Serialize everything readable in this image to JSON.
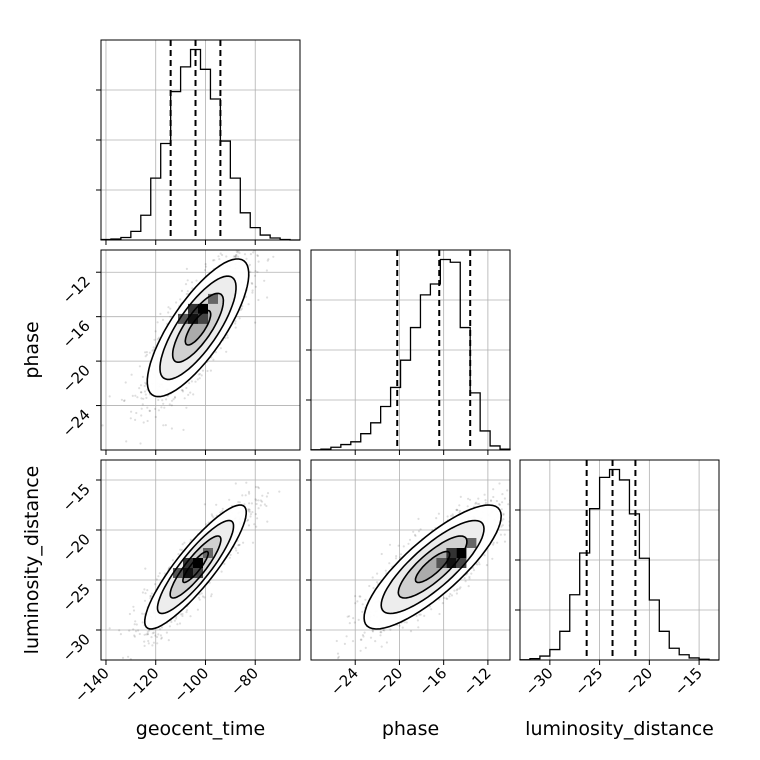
{
  "chart_data": {
    "type": "corner",
    "title": "",
    "parameters": [
      {
        "name": "geocent_time",
        "label": "geocent_time",
        "range": [
          -142,
          -62
        ],
        "ticks": [
          -140,
          -120,
          -100,
          -80
        ],
        "tick_labels": [
          "−140",
          "−120",
          "−100",
          "−80"
        ]
      },
      {
        "name": "phase",
        "label": "phase",
        "range": [
          -28,
          -10
        ],
        "ticks": [
          -24,
          -20,
          -16,
          -12
        ],
        "tick_labels": [
          "−24",
          "−20",
          "−16",
          "−12"
        ]
      },
      {
        "name": "luminosity_distance",
        "label": "luminosity_distance",
        "range": [
          -33,
          -13
        ],
        "ticks": [
          -30,
          -25,
          -20,
          -15
        ],
        "tick_labels": [
          "−30",
          "−25",
          "−20",
          "−15"
        ]
      }
    ],
    "histograms": [
      {
        "parameter": "geocent_time",
        "bin_edges_range": [
          -142,
          -62
        ],
        "bins": 20,
        "counts": [
          2,
          4,
          10,
          35,
          100,
          250,
          390,
          600,
          700,
          770,
          690,
          570,
          400,
          250,
          110,
          50,
          20,
          8,
          2,
          0
        ],
        "quantiles": [
          -114,
          -104,
          -94
        ]
      },
      {
        "parameter": "phase",
        "bin_edges_range": [
          -28,
          -10
        ],
        "bins": 20,
        "counts": [
          1,
          3,
          10,
          20,
          30,
          60,
          100,
          160,
          230,
          330,
          450,
          570,
          610,
          700,
          690,
          450,
          210,
          70,
          15,
          3
        ],
        "quantiles": [
          -20.2,
          -16.4,
          -13.6
        ]
      },
      {
        "parameter": "luminosity_distance",
        "bin_edges_range": [
          -33,
          -13
        ],
        "bins": 20,
        "counts": [
          1,
          5,
          15,
          40,
          110,
          250,
          410,
          580,
          700,
          730,
          690,
          560,
          390,
          230,
          110,
          45,
          20,
          8,
          3,
          0
        ],
        "quantiles": [
          -26.3,
          -23.7,
          -21.4
        ]
      }
    ],
    "joint": [
      {
        "x": "geocent_time",
        "y": "phase",
        "mean": [
          -103,
          -17
        ],
        "std": [
          10.2,
          3.1
        ],
        "correlation": 0.78,
        "peak": [
          -101,
          -15.3
        ],
        "contours_sigma": [
          0.5,
          1.0,
          1.5,
          2.0
        ]
      },
      {
        "x": "geocent_time",
        "y": "luminosity_distance",
        "mean": [
          -104,
          -23.7
        ],
        "std": [
          10.2,
          3.1
        ],
        "correlation": 0.88,
        "peak": [
          -103,
          -23.3
        ],
        "contours_sigma": [
          0.5,
          1.0,
          1.5,
          2.0
        ]
      },
      {
        "x": "phase",
        "y": "luminosity_distance",
        "mean": [
          -17,
          -23.7
        ],
        "std": [
          3.1,
          3.1
        ],
        "correlation": 0.82,
        "peak": [
          -14.4,
          -22.3
        ],
        "contours_sigma": [
          0.5,
          1.0,
          1.5,
          2.0
        ]
      }
    ],
    "grid": true,
    "colors": {
      "line": "#000000",
      "grid": "#b0b0b0",
      "scatter": "#000000"
    }
  }
}
